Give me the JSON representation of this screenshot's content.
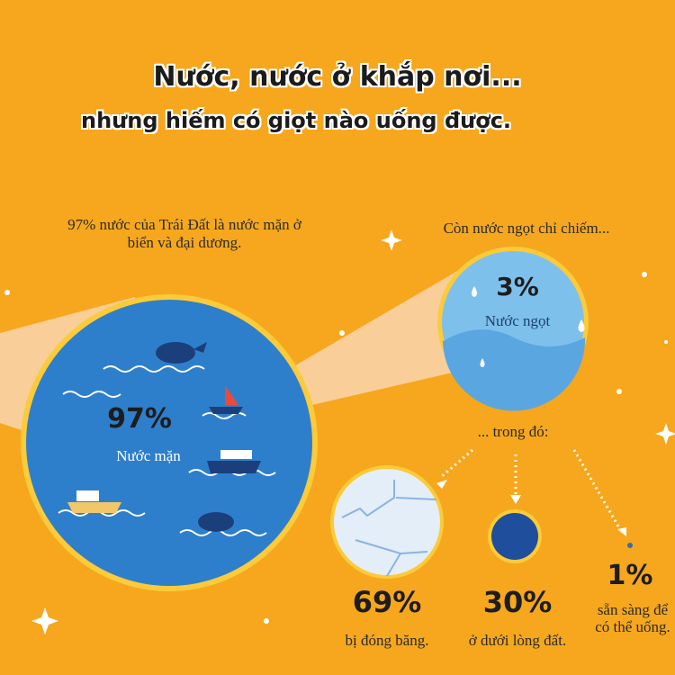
{
  "title": "Nước, nước ở khắp nơi...",
  "subtitle": "nhưng hiếm có giọt nào uống được.",
  "salt": {
    "caption": "97% nước của Trái Đất là nước mặn ở biển và đại dương.",
    "percent": "97%",
    "label": "Nước mặn"
  },
  "fresh": {
    "caption": "Còn nước ngọt chỉ chiếm...",
    "percent": "3%",
    "label": "Nước ngọt"
  },
  "of_which": "... trong đó:",
  "breakdown": [
    {
      "percent": "69%",
      "label": "bị đóng băng."
    },
    {
      "percent": "30%",
      "label": "ở dưới lòng đất."
    },
    {
      "percent": "1%",
      "label": "sẵn sàng để có thể uống."
    }
  ],
  "colors": {
    "background": "#F6A71D",
    "ocean": "#2E7FCB",
    "fresh": "#6FB7E8",
    "ice": "#E4EEF8",
    "groundwater": "#1E4E9C"
  }
}
